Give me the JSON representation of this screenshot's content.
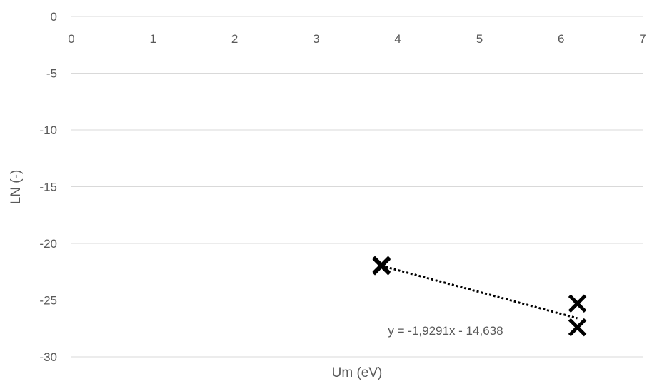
{
  "chart_data": {
    "type": "scatter",
    "title": "",
    "xlabel": "Um (eV)",
    "ylabel": "LN (-)",
    "xlim": [
      0,
      7
    ],
    "ylim": [
      -30,
      0
    ],
    "x_ticks": [
      "0",
      "1",
      "2",
      "3",
      "4",
      "5",
      "6",
      "7"
    ],
    "y_ticks": [
      "0",
      "-5",
      "-10",
      "-15",
      "-20",
      "-25",
      "-30"
    ],
    "x_axis_position": "top",
    "grid": "horizontal",
    "marker": "x",
    "series": [
      {
        "points": [
          {
            "x": 3.8,
            "y": -21.9
          },
          {
            "x": 3.8,
            "y": -22.0
          },
          {
            "x": 6.2,
            "y": -25.3
          },
          {
            "x": 6.2,
            "y": -27.4
          }
        ]
      }
    ],
    "trendline": {
      "type": "linear",
      "slope": -1.9291,
      "intercept": -14.638,
      "x_range": [
        3.8,
        6.2
      ],
      "equation_label": "y = -1,9291x - 14,638"
    },
    "colors": {
      "marker": "#000000",
      "trendline": "#000000",
      "grid": "#d9d9d9",
      "text": "#595959"
    }
  }
}
